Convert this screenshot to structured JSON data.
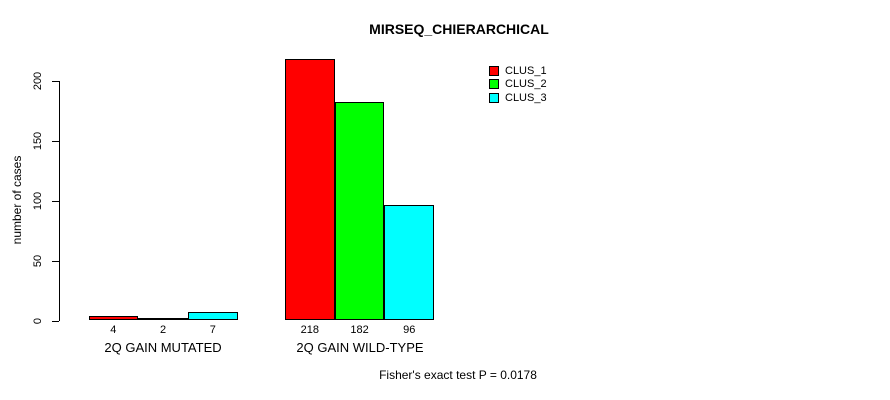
{
  "page": {
    "background_color": "#ffffff",
    "text_color": "#000000"
  },
  "chart_data": {
    "type": "bar",
    "title": "MIRSEQ_CHIERARCHICAL",
    "ylabel": "number of cases",
    "xlabel": "",
    "footer": "Fisher's exact test P = 0.0178",
    "yticks": [
      0,
      50,
      100,
      150,
      200
    ],
    "ylim": [
      0,
      218
    ],
    "grid": false,
    "legend_position": "top-right",
    "bar_border_color": "#000000",
    "series": [
      {
        "name": "CLUS_1",
        "color": "#ff0000"
      },
      {
        "name": "CLUS_2",
        "color": "#00ff00"
      },
      {
        "name": "CLUS_3",
        "color": "#00ffff"
      }
    ],
    "groups": [
      {
        "label": "2Q GAIN MUTATED",
        "values": [
          4,
          2,
          7
        ]
      },
      {
        "label": "2Q GAIN WILD-TYPE",
        "values": [
          218,
          182,
          96
        ]
      }
    ]
  }
}
